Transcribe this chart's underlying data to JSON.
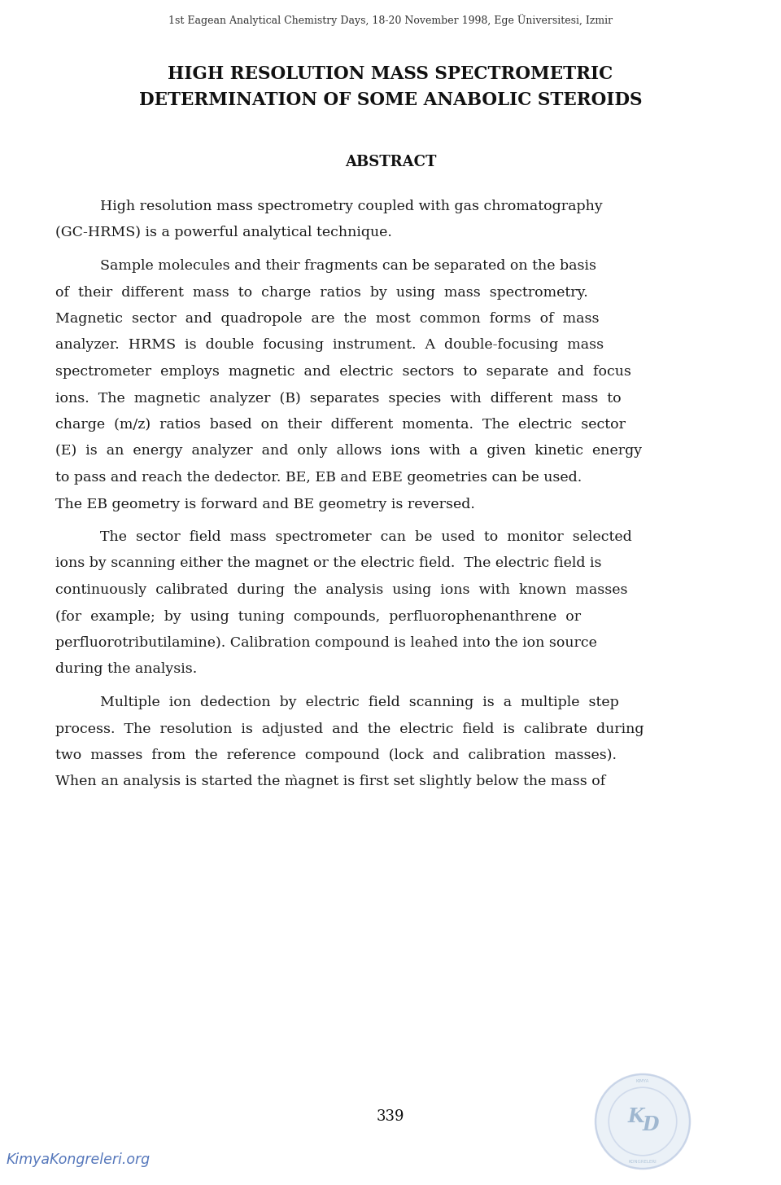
{
  "bg_color": "#ffffff",
  "header_text": "1st Eagean Analytical Chemistry Days, 18-20 November 1998, Ege Üniversitesi, Izmir",
  "title_line1": "HIGH RESOLUTION MASS SPECTROMETRIC",
  "title_line2": "DETERMINATION OF SOME ANABOLIC STEROIDS",
  "abstract_header": "ABSTRACT",
  "lines": [
    {
      "text": "High resolution mass spectrometry coupled with gas chromatography",
      "indent": true,
      "last": false
    },
    {
      "text": "(GC-HRMS) is a powerful analytical technique.",
      "indent": false,
      "last": true
    },
    {
      "text": "Sample molecules and their fragments can be separated on the basis",
      "indent": true,
      "last": false
    },
    {
      "text": "of  their  different  mass  to  charge  ratios  by  using  mass  spectrometry.",
      "indent": false,
      "last": false
    },
    {
      "text": "Magnetic  sector  and  quadropole  are  the  most  common  forms  of  mass",
      "indent": false,
      "last": false
    },
    {
      "text": "analyzer.  HRMS  is  double  focusing  instrument.  A  double-focusing  mass",
      "indent": false,
      "last": false
    },
    {
      "text": "spectrometer  employs  magnetic  and  electric  sectors  to  separate  and  focus",
      "indent": false,
      "last": false
    },
    {
      "text": "ions.  The  magnetic  analyzer  (B)  separates  species  with  different  mass  to",
      "indent": false,
      "last": false
    },
    {
      "text": "charge  (m/z)  ratios  based  on  their  different  momenta.  The  electric  sector",
      "indent": false,
      "last": false
    },
    {
      "text": "(E)  is  an  energy  analyzer  and  only  allows  ions  with  a  given  kinetic  energy",
      "indent": false,
      "last": false
    },
    {
      "text": "to pass and reach the dedector. BE, EB and EBE geometries can be used.",
      "indent": false,
      "last": false
    },
    {
      "text": "The EB geometry is forward and BE geometry is reversed.",
      "indent": false,
      "last": true
    },
    {
      "text": "The  sector  field  mass  spectrometer  can  be  used  to  monitor  selected",
      "indent": true,
      "last": false
    },
    {
      "text": "ions by scanning either the magnet or the electric field.  The electric field is",
      "indent": false,
      "last": false
    },
    {
      "text": "continuously  calibrated  during  the  analysis  using  ions  with  known  masses",
      "indent": false,
      "last": false
    },
    {
      "text": "(for  example;  by  using  tuning  compounds,  perfluorophenanthrene  or",
      "indent": false,
      "last": false
    },
    {
      "text": "perfluorotributilamine). Calibration compound is leahed into the ion source",
      "indent": false,
      "last": false
    },
    {
      "text": "during the analysis.",
      "indent": false,
      "last": true
    },
    {
      "text": "Multiple  ion  dedection  by  electric  field  scanning  is  a  multiple  step",
      "indent": true,
      "last": false
    },
    {
      "text": "process.  The  resolution  is  adjusted  and  the  electric  field  is  calibrate  during",
      "indent": false,
      "last": false
    },
    {
      "text": "two  masses  from  the  reference  compound  (lock  and  calibration  masses).",
      "indent": false,
      "last": false
    },
    {
      "text": "When an analysis is started the m̀agnet is first set slightly below the mass of",
      "indent": false,
      "last": false
    }
  ],
  "page_number": "339",
  "watermark_text": "KimyaKongreleri.org",
  "text_color": "#1a1a1a",
  "header_color": "#333333",
  "seal_color": "#b0c0dd"
}
